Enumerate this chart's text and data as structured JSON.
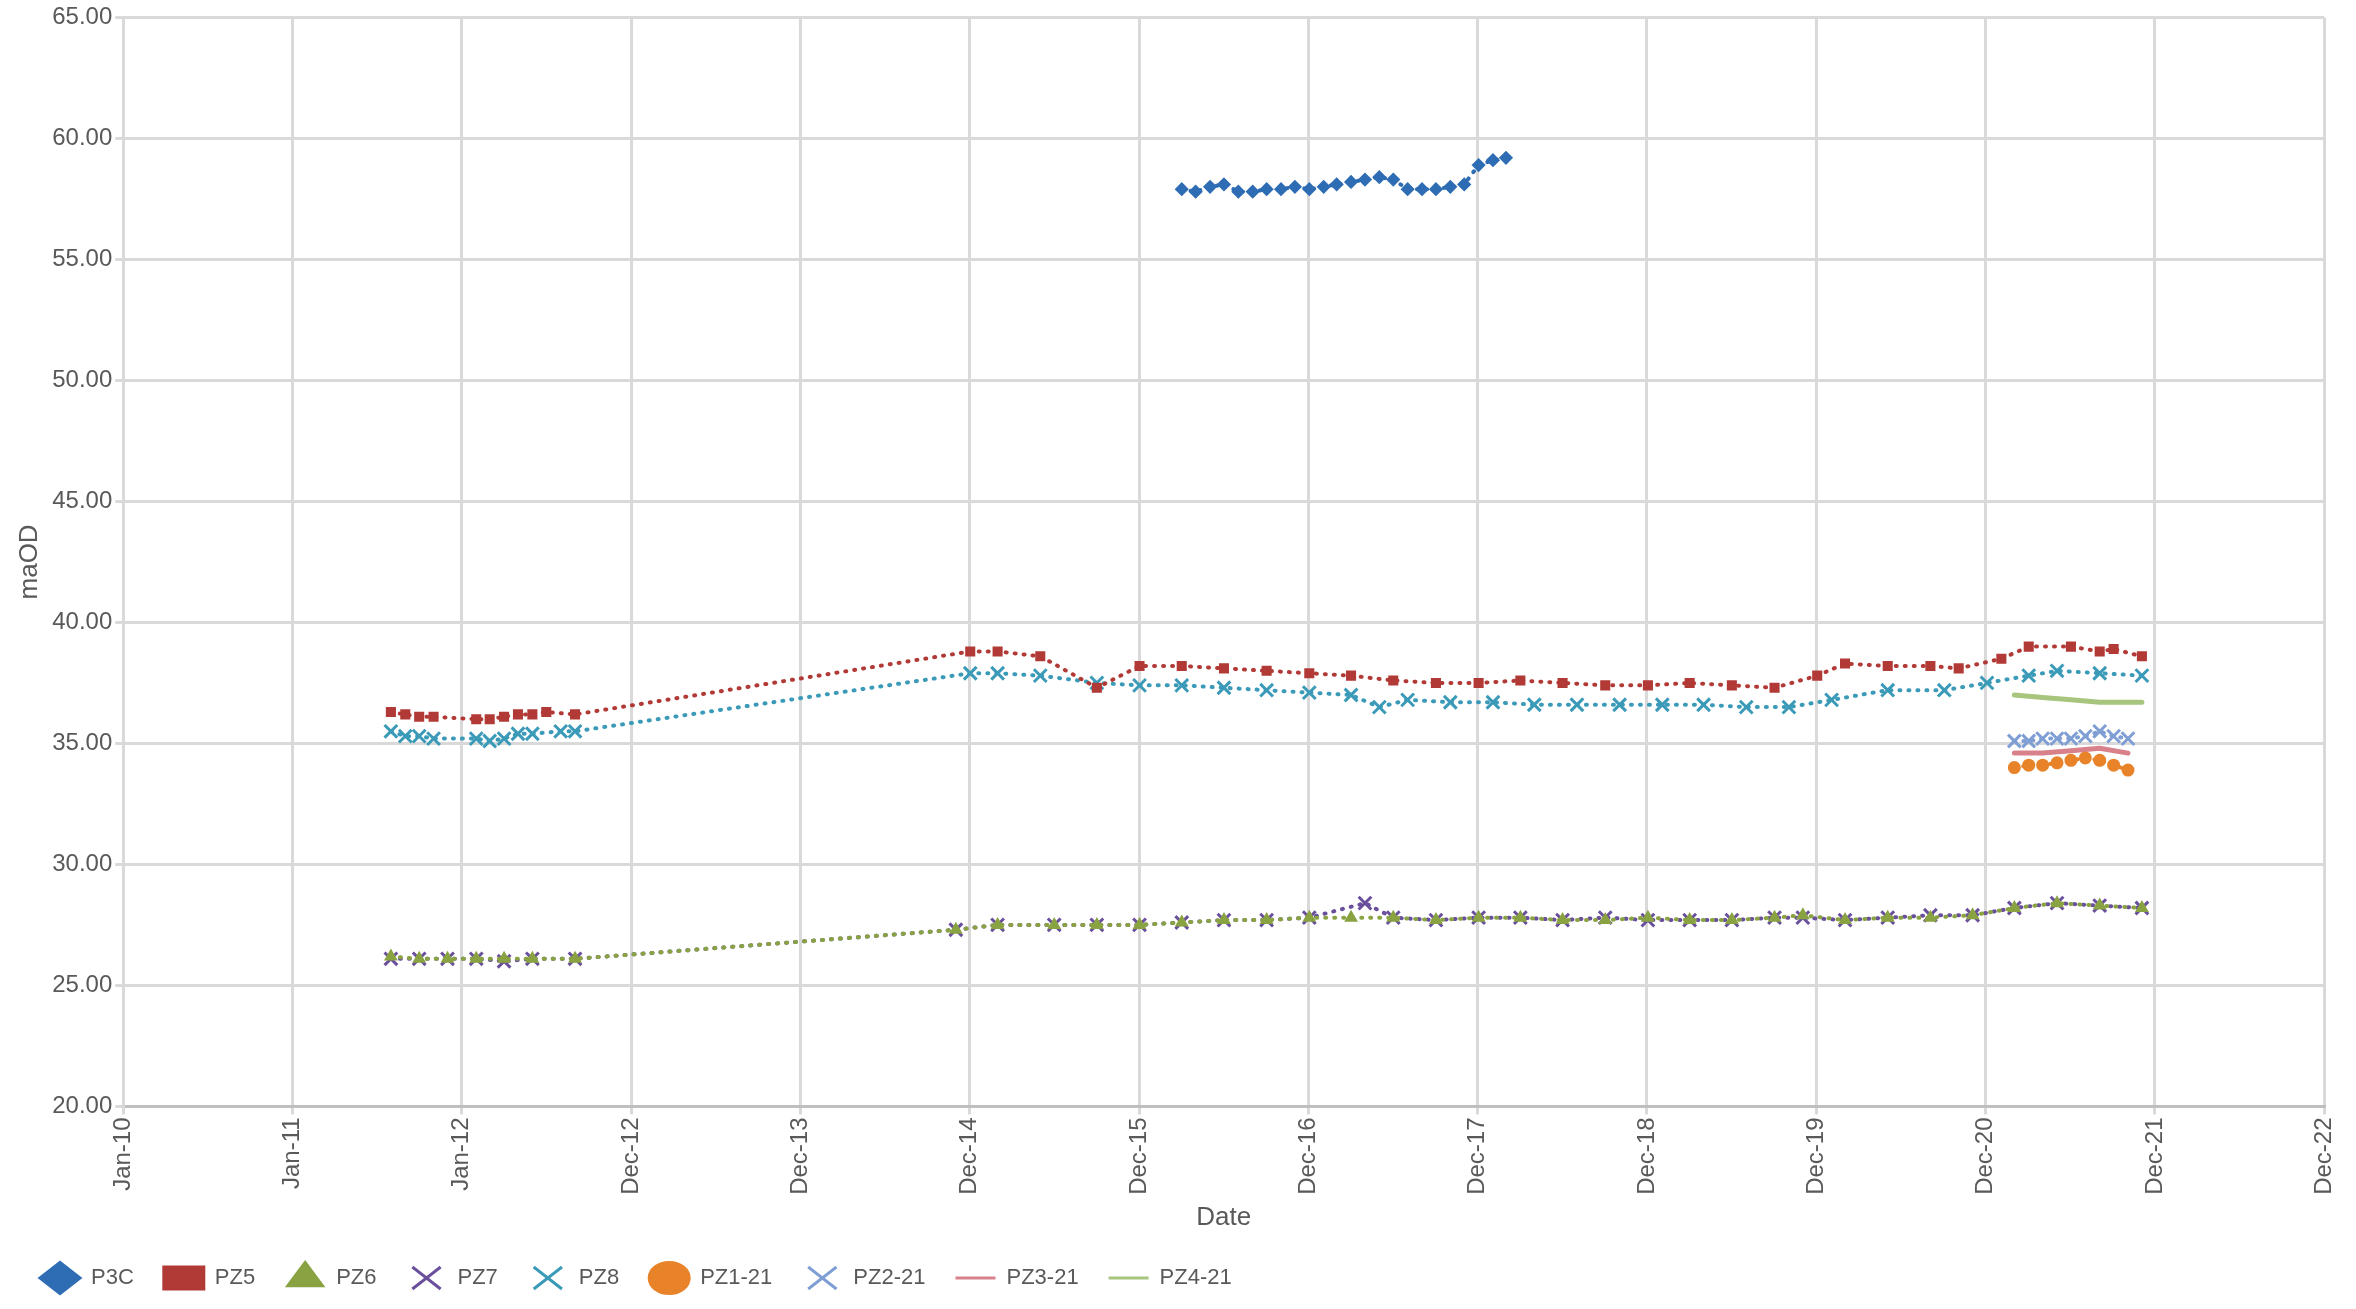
{
  "chart_data": {
    "type": "line",
    "xlabel": "Date",
    "ylabel": "maOD",
    "grid": true,
    "legend": "bottom",
    "xlim": [
      "2010-01-01",
      "2022-12-29"
    ],
    "xticks": [
      {
        "value": "2010-01-01",
        "label": "Jan-10"
      },
      {
        "value": "2011-01-01",
        "label": "Jan-11"
      },
      {
        "value": "2012-01-01",
        "label": "Jan-12"
      },
      {
        "value": "2012-12-31",
        "label": "Dec-12"
      },
      {
        "value": "2013-12-31",
        "label": "Dec-13"
      },
      {
        "value": "2014-12-31",
        "label": "Dec-14"
      },
      {
        "value": "2015-12-31",
        "label": "Dec-15"
      },
      {
        "value": "2016-12-30",
        "label": "Dec-16"
      },
      {
        "value": "2017-12-30",
        "label": "Dec-17"
      },
      {
        "value": "2018-12-30",
        "label": "Dec-18"
      },
      {
        "value": "2019-12-30",
        "label": "Dec-19"
      },
      {
        "value": "2020-12-29",
        "label": "Dec-20"
      },
      {
        "value": "2021-12-29",
        "label": "Dec-21"
      },
      {
        "value": "2022-12-29",
        "label": "Dec-22"
      }
    ],
    "ylim": [
      20,
      65
    ],
    "yticks": [
      {
        "value": 20,
        "label": "20.00"
      },
      {
        "value": 25,
        "label": "25.00"
      },
      {
        "value": 30,
        "label": "30.00"
      },
      {
        "value": 35,
        "label": "35.00"
      },
      {
        "value": 40,
        "label": "40.00"
      },
      {
        "value": 45,
        "label": "45.00"
      },
      {
        "value": 50,
        "label": "50.00"
      },
      {
        "value": 55,
        "label": "55.00"
      },
      {
        "value": 60,
        "label": "60.00"
      },
      {
        "value": 65,
        "label": "65.00"
      }
    ],
    "series": [
      {
        "name": "P3C",
        "color": "#2e6db4",
        "marker": "diamond",
        "line_style": "dotted",
        "x": [
          "2016-04",
          "2016-05",
          "2016-06",
          "2016-07",
          "2016-08",
          "2016-09",
          "2016-10",
          "2016-11",
          "2016-12",
          "2017-01",
          "2017-02",
          "2017-03",
          "2017-04",
          "2017-05",
          "2017-06",
          "2017-07",
          "2017-08",
          "2017-09",
          "2017-10",
          "2017-11",
          "2017-12",
          "2018-01",
          "2018-02",
          "2018-03"
        ],
        "values": [
          57.9,
          57.8,
          58.0,
          58.1,
          57.8,
          57.8,
          57.9,
          57.9,
          58.0,
          57.9,
          58.0,
          58.1,
          58.2,
          58.3,
          58.4,
          58.3,
          57.9,
          57.9,
          57.9,
          58.0,
          58.1,
          58.9,
          59.1,
          59.2
        ]
      },
      {
        "name": "PZ5",
        "color": "#b23a36",
        "marker": "square",
        "line_style": "dotted",
        "x": [
          "2011-08",
          "2011-09",
          "2011-10",
          "2011-11",
          "2012-02",
          "2012-03",
          "2012-04",
          "2012-05",
          "2012-06",
          "2012-07",
          "2012-09",
          "2015-01",
          "2015-03",
          "2015-06",
          "2015-10",
          "2016-01",
          "2016-04",
          "2016-07",
          "2016-10",
          "2017-01",
          "2017-04",
          "2017-07",
          "2017-10",
          "2018-01",
          "2018-04",
          "2018-07",
          "2018-10",
          "2019-01",
          "2019-04",
          "2019-07",
          "2019-10",
          "2020-01",
          "2020-03",
          "2020-06",
          "2020-09",
          "2020-11",
          "2021-02",
          "2021-04",
          "2021-07",
          "2021-09",
          "2021-10",
          "2021-12"
        ],
        "values": [
          36.3,
          36.2,
          36.1,
          36.1,
          36.0,
          36.0,
          36.1,
          36.2,
          36.2,
          36.3,
          36.2,
          38.8,
          38.8,
          38.6,
          37.3,
          38.2,
          38.2,
          38.1,
          38.0,
          37.9,
          37.8,
          37.6,
          37.5,
          37.5,
          37.6,
          37.5,
          37.4,
          37.4,
          37.5,
          37.4,
          37.3,
          37.8,
          38.3,
          38.2,
          38.2,
          38.1,
          38.5,
          39.0,
          39.0,
          38.8,
          38.9,
          38.6
        ]
      },
      {
        "name": "PZ6",
        "color": "#8aa342",
        "marker": "triangle",
        "line_style": "dotted",
        "x": [
          "2011-08",
          "2011-10",
          "2011-12",
          "2012-02",
          "2012-04",
          "2012-06",
          "2012-09",
          "2014-12",
          "2015-03",
          "2015-07",
          "2015-10",
          "2016-01",
          "2016-04",
          "2016-07",
          "2016-10",
          "2017-01",
          "2017-04",
          "2017-07",
          "2017-10",
          "2018-01",
          "2018-04",
          "2018-07",
          "2018-10",
          "2019-01",
          "2019-04",
          "2019-07",
          "2019-10",
          "2019-12",
          "2020-03",
          "2020-06",
          "2020-09",
          "2020-12",
          "2021-03",
          "2021-06",
          "2021-09",
          "2021-12"
        ],
        "values": [
          26.2,
          26.1,
          26.1,
          26.1,
          26.1,
          26.1,
          26.1,
          27.3,
          27.5,
          27.5,
          27.5,
          27.5,
          27.6,
          27.7,
          27.7,
          27.8,
          27.8,
          27.8,
          27.7,
          27.8,
          27.8,
          27.7,
          27.7,
          27.8,
          27.7,
          27.7,
          27.8,
          27.9,
          27.7,
          27.8,
          27.8,
          27.9,
          28.2,
          28.4,
          28.3,
          28.2
        ]
      },
      {
        "name": "PZ7",
        "color": "#6a4f9c",
        "marker": "cross",
        "line_style": "dotted",
        "x": [
          "2011-08",
          "2011-10",
          "2011-12",
          "2012-02",
          "2012-04",
          "2012-06",
          "2012-09",
          "2014-12",
          "2015-03",
          "2015-07",
          "2015-10",
          "2016-01",
          "2016-04",
          "2016-07",
          "2016-10",
          "2017-01",
          "2017-05",
          "2017-07",
          "2017-10",
          "2018-01",
          "2018-04",
          "2018-07",
          "2018-10",
          "2019-01",
          "2019-04",
          "2019-07",
          "2019-10",
          "2019-12",
          "2020-03",
          "2020-06",
          "2020-09",
          "2020-12",
          "2021-03",
          "2021-06",
          "2021-09",
          "2021-12"
        ],
        "values": [
          26.1,
          26.1,
          26.1,
          26.1,
          26.0,
          26.1,
          26.1,
          27.3,
          27.5,
          27.5,
          27.5,
          27.5,
          27.6,
          27.7,
          27.7,
          27.8,
          28.4,
          27.8,
          27.7,
          27.8,
          27.8,
          27.7,
          27.8,
          27.7,
          27.7,
          27.7,
          27.8,
          27.8,
          27.7,
          27.8,
          27.9,
          27.9,
          28.2,
          28.4,
          28.3,
          28.2
        ]
      },
      {
        "name": "PZ8",
        "color": "#3a9ab8",
        "marker": "cross",
        "line_style": "dotted",
        "x": [
          "2011-08",
          "2011-09",
          "2011-10",
          "2011-11",
          "2012-02",
          "2012-03",
          "2012-04",
          "2012-05",
          "2012-06",
          "2012-08",
          "2012-09",
          "2015-01",
          "2015-03",
          "2015-06",
          "2015-10",
          "2016-01",
          "2016-04",
          "2016-07",
          "2016-10",
          "2017-01",
          "2017-04",
          "2017-06",
          "2017-08",
          "2017-11",
          "2018-02",
          "2018-05",
          "2018-08",
          "2018-11",
          "2019-02",
          "2019-05",
          "2019-08",
          "2019-11",
          "2020-02",
          "2020-06",
          "2020-10",
          "2021-01",
          "2021-04",
          "2021-06",
          "2021-09",
          "2021-12"
        ],
        "values": [
          35.5,
          35.3,
          35.3,
          35.2,
          35.2,
          35.1,
          35.2,
          35.4,
          35.4,
          35.5,
          35.5,
          37.9,
          37.9,
          37.8,
          37.5,
          37.4,
          37.4,
          37.3,
          37.2,
          37.1,
          37.0,
          36.5,
          36.8,
          36.7,
          36.7,
          36.6,
          36.6,
          36.6,
          36.6,
          36.6,
          36.5,
          36.5,
          36.8,
          37.2,
          37.2,
          37.5,
          37.8,
          38.0,
          37.9,
          37.8
        ]
      },
      {
        "name": "PZ1-21",
        "color": "#e8832a",
        "marker": "circle",
        "line_style": "dotted",
        "x": [
          "2021-03",
          "2021-04",
          "2021-05",
          "2021-06",
          "2021-07",
          "2021-08",
          "2021-09",
          "2021-10",
          "2021-11"
        ],
        "values": [
          34.0,
          34.1,
          34.1,
          34.2,
          34.3,
          34.4,
          34.3,
          34.1,
          33.9
        ]
      },
      {
        "name": "PZ2-21",
        "color": "#7f9fd4",
        "marker": "cross",
        "line_style": "dotted",
        "x": [
          "2021-03",
          "2021-04",
          "2021-05",
          "2021-06",
          "2021-07",
          "2021-08",
          "2021-09",
          "2021-10",
          "2021-11"
        ],
        "values": [
          35.1,
          35.1,
          35.2,
          35.2,
          35.2,
          35.3,
          35.5,
          35.3,
          35.2
        ]
      },
      {
        "name": "PZ3-21",
        "color": "#d9818a",
        "marker": "none",
        "line_style": "solid",
        "x": [
          "2021-03",
          "2021-05",
          "2021-07",
          "2021-09",
          "2021-11"
        ],
        "values": [
          34.6,
          34.6,
          34.7,
          34.8,
          34.6
        ]
      },
      {
        "name": "PZ4-21",
        "color": "#a8c57e",
        "marker": "none",
        "line_style": "solid",
        "x": [
          "2021-03",
          "2021-05",
          "2021-07",
          "2021-09",
          "2021-12"
        ],
        "values": [
          37.0,
          36.9,
          36.8,
          36.7,
          36.7
        ]
      }
    ]
  }
}
